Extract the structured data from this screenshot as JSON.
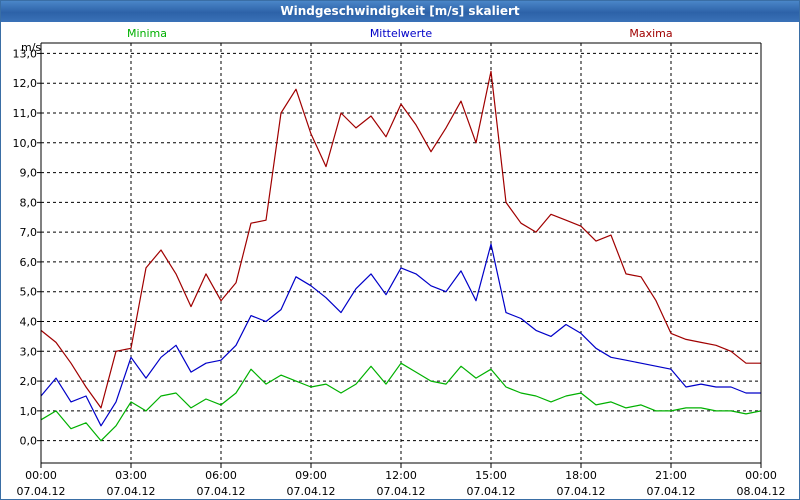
{
  "window": {
    "title": "Windgeschwindigkeit [m/s] skaliert"
  },
  "colors": {
    "titlebar": "#2d62a8",
    "grid": "#000000",
    "minima": "#00b000",
    "mittelwerte": "#0000c8",
    "maxima": "#a00000"
  },
  "chart_data": {
    "type": "line",
    "ylabel": "m/s",
    "ylim": [
      -0.75,
      13.35
    ],
    "xlim": [
      0,
      24
    ],
    "grid": true,
    "legend_position": "top",
    "yticks": [
      "0,0",
      "1,0",
      "2,0",
      "3,0",
      "4,0",
      "5,0",
      "6,0",
      "7,0",
      "8,0",
      "9,0",
      "10,0",
      "11,0",
      "12,0",
      "13,0"
    ],
    "xticks": [
      {
        "time": "00:00",
        "date": "07.04.12"
      },
      {
        "time": "03:00",
        "date": "07.04.12"
      },
      {
        "time": "06:00",
        "date": "07.04.12"
      },
      {
        "time": "09:00",
        "date": "07.04.12"
      },
      {
        "time": "12:00",
        "date": "07.04.12"
      },
      {
        "time": "15:00",
        "date": "07.04.12"
      },
      {
        "time": "18:00",
        "date": "07.04.12"
      },
      {
        "time": "21:00",
        "date": "07.04.12"
      },
      {
        "time": "00:00",
        "date": "08.04.12"
      }
    ],
    "x_hours": [
      0.0,
      0.5,
      1.0,
      1.5,
      2.0,
      2.5,
      3.0,
      3.5,
      4.0,
      4.5,
      5.0,
      5.5,
      6.0,
      6.5,
      7.0,
      7.5,
      8.0,
      8.5,
      9.0,
      9.5,
      10.0,
      10.5,
      11.0,
      11.5,
      12.0,
      12.5,
      13.0,
      13.5,
      14.0,
      14.5,
      15.0,
      15.5,
      16.0,
      16.5,
      17.0,
      17.5,
      18.0,
      18.5,
      19.0,
      19.5,
      20.0,
      20.5,
      21.0,
      21.5,
      22.0,
      22.5,
      23.0,
      23.5,
      24.0
    ],
    "series": [
      {
        "name": "Minima",
        "values": [
          0.7,
          1.0,
          0.4,
          0.6,
          0.0,
          0.5,
          1.3,
          1.0,
          1.5,
          1.6,
          1.1,
          1.4,
          1.2,
          1.6,
          2.4,
          1.9,
          2.2,
          2.0,
          1.8,
          1.9,
          1.6,
          1.9,
          2.5,
          1.9,
          2.6,
          2.3,
          2.0,
          1.9,
          2.5,
          2.1,
          2.4,
          1.8,
          1.6,
          1.5,
          1.3,
          1.5,
          1.6,
          1.2,
          1.3,
          1.1,
          1.2,
          1.0,
          1.0,
          1.1,
          1.1,
          1.0,
          1.0,
          0.9,
          1.0
        ]
      },
      {
        "name": "Mittelwerte",
        "values": [
          1.5,
          2.1,
          1.3,
          1.5,
          0.5,
          1.3,
          2.8,
          2.1,
          2.8,
          3.2,
          2.3,
          2.6,
          2.7,
          3.2,
          4.2,
          4.0,
          4.4,
          5.5,
          5.2,
          4.8,
          4.3,
          5.1,
          5.6,
          4.9,
          5.8,
          5.6,
          5.2,
          5.0,
          5.7,
          4.7,
          6.6,
          4.3,
          4.1,
          3.7,
          3.5,
          3.9,
          3.6,
          3.1,
          2.8,
          2.7,
          2.6,
          2.5,
          2.4,
          1.8,
          1.9,
          1.8,
          1.8,
          1.6,
          1.6
        ]
      },
      {
        "name": "Maxima",
        "values": [
          3.7,
          3.3,
          2.6,
          1.8,
          1.1,
          3.0,
          3.1,
          5.8,
          6.4,
          5.6,
          4.5,
          5.6,
          4.7,
          5.3,
          7.3,
          7.4,
          11.0,
          11.8,
          10.3,
          9.2,
          11.0,
          10.5,
          10.9,
          10.2,
          11.3,
          10.6,
          9.7,
          10.5,
          11.4,
          10.0,
          12.4,
          8.0,
          7.3,
          7.0,
          7.6,
          7.4,
          7.2,
          6.7,
          6.9,
          5.6,
          5.5,
          4.7,
          3.6,
          3.4,
          3.3,
          3.2,
          3.0,
          2.6,
          2.6
        ]
      }
    ]
  }
}
